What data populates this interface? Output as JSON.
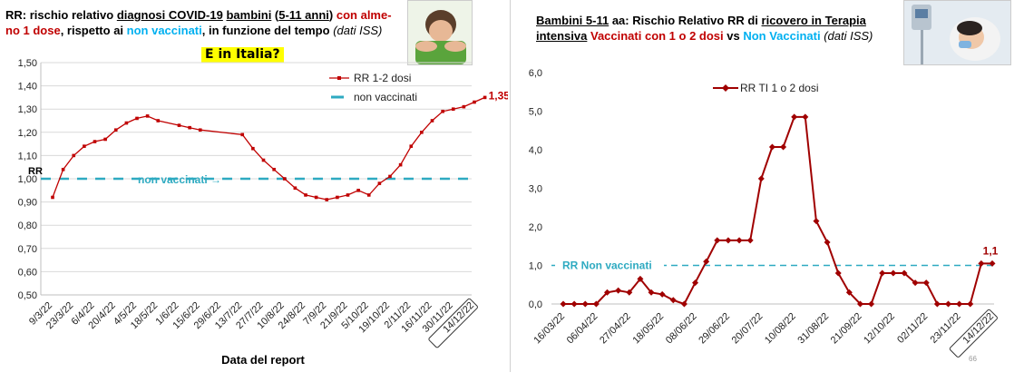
{
  "left": {
    "title_parts": [
      {
        "text": "RR: rischio relativo ",
        "style": "b"
      },
      {
        "text": "diagnosi COVID-19",
        "style": "u"
      },
      {
        "text": " ",
        "style": "b"
      },
      {
        "text": "bambini",
        "style": "u"
      },
      {
        "text": " (",
        "style": "b"
      },
      {
        "text": "5-11 anni",
        "style": "u"
      },
      {
        "text": ") ",
        "style": "b"
      },
      {
        "text": "con alme-",
        "style": "red"
      },
      {
        "text": "no 1 dose",
        "style": "red",
        "br": true
      },
      {
        "text": ", rispetto ai ",
        "style": "b"
      },
      {
        "text": "non vaccinati",
        "style": "cyan"
      },
      {
        "text": ", in funzione del tempo ",
        "style": "b"
      },
      {
        "text": "(dati ISS)",
        "style": "it"
      }
    ],
    "banner": "E in Italia?",
    "chart_data": {
      "type": "line",
      "title": "",
      "xlabel": "Data del report",
      "ylabel": "",
      "ylim": [
        0.5,
        1.5
      ],
      "yticks": [
        "0,50",
        "0,60",
        "0,70",
        "0,80",
        "0,90",
        "1,00",
        "1,10",
        "1,20",
        "1,30",
        "1,40",
        "1,50"
      ],
      "ytick_values": [
        0.5,
        0.6,
        0.7,
        0.8,
        0.9,
        1.0,
        1.1,
        1.2,
        1.3,
        1.4,
        1.5
      ],
      "xticks": [
        "9/3/22",
        "23/3/22",
        "6/4/22",
        "20/4/22",
        "4/5/22",
        "18/5/22",
        "1/6/22",
        "15/6/22",
        "29/6/22",
        "13/7/22",
        "27/7/22",
        "10/8/22",
        "24/8/22",
        "7/9/22",
        "21/9/22",
        "5/10/22",
        "19/10/22",
        "2/11/22",
        "16/11/22",
        "30/11/22",
        "14/12/22"
      ],
      "series": [
        {
          "name": "RR 1-2 dosi",
          "color": "#c00000",
          "x": [
            0,
            0.5,
            1,
            1.5,
            2,
            2.5,
            3,
            3.5,
            4,
            4.5,
            5,
            6,
            6.5,
            7,
            9,
            9.5,
            10,
            10.5,
            11,
            11.5,
            12,
            12.5,
            13,
            13.5,
            14,
            14.5,
            15,
            15.5,
            16,
            16.5,
            17,
            17.5,
            18,
            18.5,
            19,
            19.5,
            20,
            20.5
          ],
          "values": [
            0.92,
            1.04,
            1.1,
            1.14,
            1.16,
            1.17,
            1.21,
            1.24,
            1.26,
            1.27,
            1.25,
            1.23,
            1.22,
            1.21,
            1.19,
            1.13,
            1.08,
            1.04,
            1.0,
            0.96,
            0.93,
            0.92,
            0.91,
            0.92,
            0.93,
            0.95,
            0.93,
            0.98,
            1.01,
            1.06,
            1.14,
            1.2,
            1.25,
            1.29,
            1.3,
            1.31,
            1.33,
            1.35
          ]
        },
        {
          "name": "non vaccinati",
          "color": "#2eaac1",
          "dashed": true,
          "values": [
            1.0
          ]
        }
      ],
      "annotations": {
        "rr_label": "RR",
        "ref_label": "non vaccinati",
        "ref_arrow": "→",
        "last_value": "1,35"
      },
      "grid": true,
      "legend": "top-right"
    }
  },
  "right": {
    "title_parts": [
      {
        "text": "Bambini 5-11",
        "style": "u"
      },
      {
        "text": " aa: Rischio Relativo RR di ",
        "style": "b"
      },
      {
        "text": "ricovero in Terapia",
        "style": "u"
      },
      {
        "text": "intensiva",
        "style": "u",
        "br": true
      },
      {
        "text": " ",
        "style": "b"
      },
      {
        "text": "Vaccinati con 1 o 2 dosi",
        "style": "red"
      },
      {
        "text": " vs ",
        "style": "b"
      },
      {
        "text": "Non Vaccinati",
        "style": "cyan"
      },
      {
        "text": " (dati ISS)",
        "style": "it"
      }
    ],
    "chart_data": {
      "type": "line",
      "title": "",
      "xlabel": "",
      "ylabel": "",
      "ylim": [
        0,
        6
      ],
      "yticks": [
        "0,0",
        "1,0",
        "2,0",
        "3,0",
        "4,0",
        "5,0",
        "6,0"
      ],
      "ytick_values": [
        0,
        1,
        2,
        3,
        4,
        5,
        6
      ],
      "xticks": [
        "16/03/22",
        "06/04/22",
        "27/04/22",
        "18/05/22",
        "08/06/22",
        "29/06/22",
        "20/07/22",
        "10/08/22",
        "31/08/22",
        "21/09/22",
        "12/10/22",
        "02/11/22",
        "23/11/22",
        "14/12/22"
      ],
      "series": [
        {
          "name": "RR TI 1 o 2 dosi",
          "color": "#a00000",
          "values": [
            0,
            0,
            0,
            0,
            0.3,
            0.35,
            0.3,
            0.65,
            0.3,
            0.25,
            0.1,
            0,
            0.55,
            1.1,
            1.65,
            1.65,
            1.65,
            1.65,
            3.25,
            4.07,
            4.07,
            4.85,
            4.85,
            2.15,
            1.6,
            0.8,
            0.3,
            0,
            0,
            0.8,
            0.8,
            0.8,
            0.55,
            0.55,
            0,
            0,
            0,
            0,
            1.05,
            1.05
          ]
        },
        {
          "name": "RR Non vaccinati",
          "color": "#2eaac1",
          "dashed": true,
          "values": [
            1.0
          ]
        }
      ],
      "annotations": {
        "ref_label": "RR Non vaccinati",
        "last_value": "1,1",
        "page_number": "66"
      },
      "grid": false,
      "legend": "top-left"
    }
  }
}
